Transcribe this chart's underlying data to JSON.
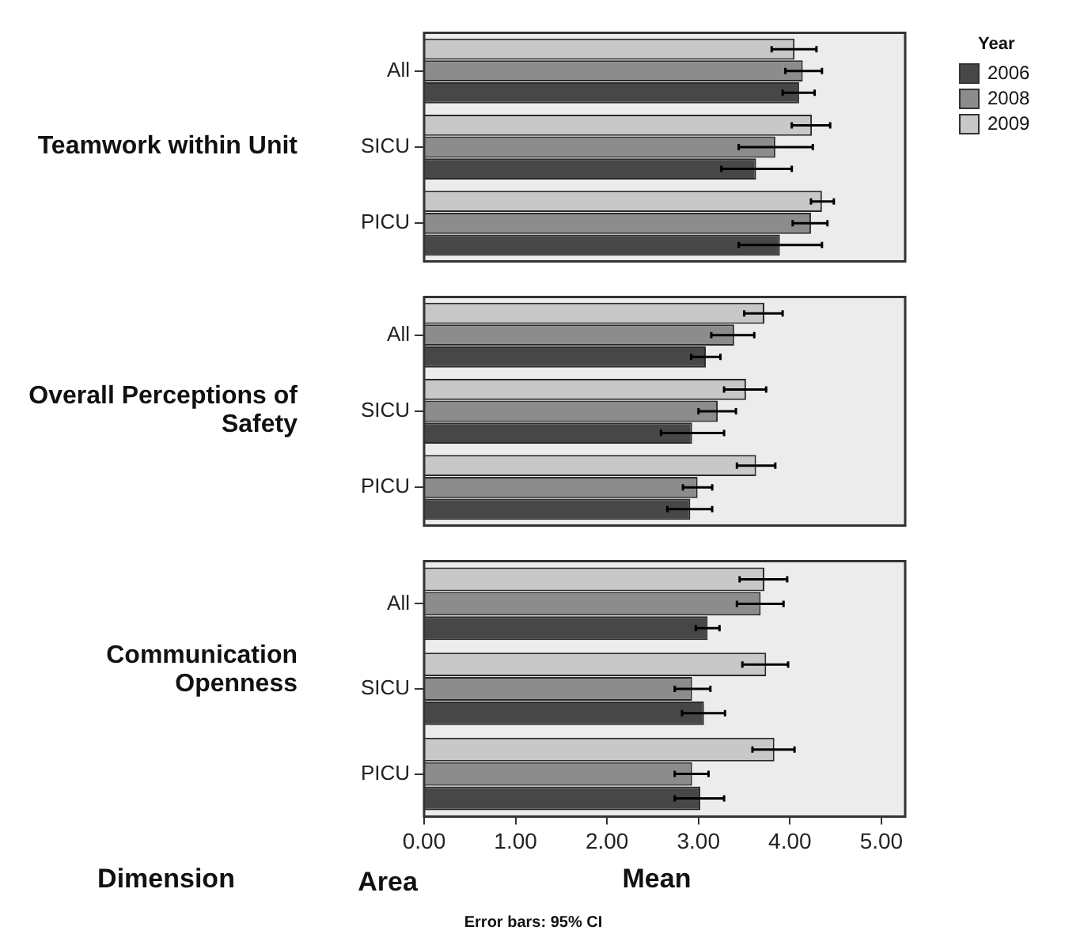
{
  "chart_data": [
    {
      "type": "bar",
      "orientation": "horizontal",
      "ylabel": "Teamwork within Unit",
      "categories": [
        "All",
        "SICU",
        "PICU"
      ],
      "legend": "right",
      "legend_title": "Year",
      "tick_labels": "y",
      "xlim": [
        0,
        5.26
      ],
      "series": [
        {
          "name": "2006",
          "color": "#474747",
          "values": [
            4.1,
            3.63,
            3.89
          ],
          "errors": [
            [
              3.92,
              4.27
            ],
            [
              3.25,
              4.02
            ],
            [
              3.44,
              4.35
            ]
          ]
        },
        {
          "name": "2008",
          "color": "#8c8c8c",
          "values": [
            4.14,
            3.84,
            4.23
          ],
          "errors": [
            [
              3.95,
              4.35
            ],
            [
              3.44,
              4.25
            ],
            [
              4.03,
              4.41
            ]
          ]
        },
        {
          "name": "2009",
          "color": "#c8c8c8",
          "values": [
            4.05,
            4.24,
            4.35
          ],
          "errors": [
            [
              3.8,
              4.29
            ],
            [
              4.02,
              4.44
            ],
            [
              4.23,
              4.48
            ]
          ]
        }
      ]
    },
    {
      "type": "bar",
      "orientation": "horizontal",
      "ylabel": "Overall Perceptions of Safety",
      "categories": [
        "All",
        "SICU",
        "PICU"
      ],
      "tick_labels": "y",
      "xlim": [
        0,
        5.26
      ],
      "series": [
        {
          "color": "#474747",
          "values": [
            3.08,
            2.93,
            2.91
          ],
          "errors": [
            [
              2.92,
              3.24
            ],
            [
              2.59,
              3.28
            ],
            [
              2.66,
              3.15
            ]
          ]
        },
        {
          "color": "#8c8c8c",
          "values": [
            3.39,
            3.21,
            2.99
          ],
          "errors": [
            [
              3.14,
              3.61
            ],
            [
              3.0,
              3.41
            ],
            [
              2.83,
              3.15
            ]
          ]
        },
        {
          "color": "#c8c8c8",
          "values": [
            3.72,
            3.52,
            3.63
          ],
          "errors": [
            [
              3.5,
              3.92
            ],
            [
              3.28,
              3.74
            ],
            [
              3.42,
              3.84
            ]
          ]
        }
      ]
    },
    {
      "type": "bar",
      "orientation": "horizontal",
      "ylabel": "Communication Openness",
      "xlabel": "Mean",
      "categories": [
        "All",
        "SICU",
        "PICU"
      ],
      "xlim": [
        0,
        5.26
      ],
      "xticks": [
        {
          "value": 0,
          "label": "0.00"
        },
        {
          "value": 1,
          "label": "1.00"
        },
        {
          "value": 2,
          "label": "2.00"
        },
        {
          "value": 3,
          "label": "3.00"
        },
        {
          "value": 4,
          "label": "4.00"
        },
        {
          "value": 5,
          "label": "5.00"
        }
      ],
      "annotations": [
        "Dimension",
        "Area",
        "Error bars: 95% CI"
      ],
      "series": [
        {
          "color": "#474747",
          "values": [
            3.1,
            3.06,
            3.02
          ],
          "errors": [
            [
              2.97,
              3.23
            ],
            [
              2.82,
              3.29
            ],
            [
              2.74,
              3.28
            ]
          ]
        },
        {
          "color": "#8c8c8c",
          "values": [
            3.68,
            2.93,
            2.93
          ],
          "errors": [
            [
              3.42,
              3.93
            ],
            [
              2.74,
              3.13
            ],
            [
              2.74,
              3.11
            ]
          ]
        },
        {
          "color": "#c8c8c8",
          "values": [
            3.72,
            3.74,
            3.83
          ],
          "errors": [
            [
              3.45,
              3.97
            ],
            [
              3.48,
              3.98
            ],
            [
              3.59,
              4.05
            ]
          ]
        }
      ]
    }
  ]
}
